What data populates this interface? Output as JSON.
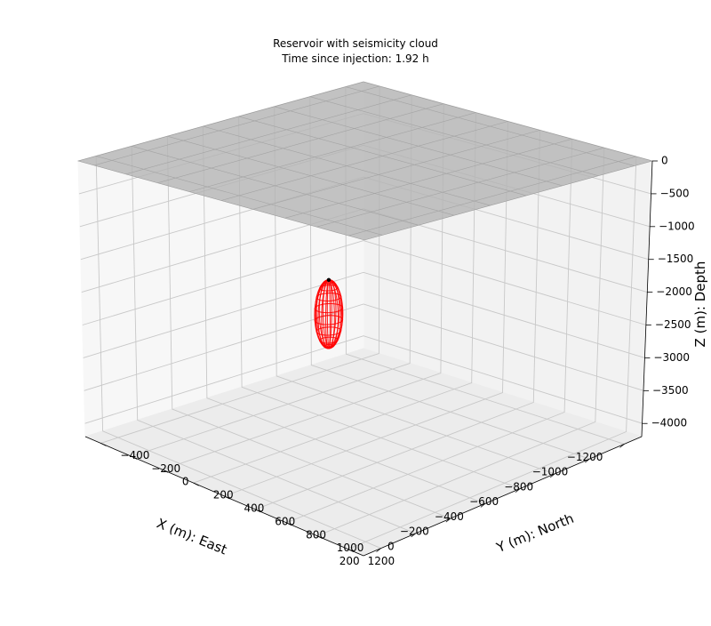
{
  "chart_data": {
    "type": "3d-surface-wireframe",
    "title": "Reservoir with seismicity cloud",
    "subtitle": "Time since injection: 1.92 h",
    "xlabel": "X (m): East",
    "ylabel": "Y (m): North",
    "zlabel": "Z (m): Depth",
    "x_ticks": [
      200,
      0,
      -200,
      -400,
      -600,
      -800,
      -1000,
      -1200
    ],
    "x_tick_labels": [
      "200",
      "0",
      "−200",
      "−400",
      "−600",
      "−800",
      "−1000",
      "−1200"
    ],
    "y_ticks": [
      -400,
      -200,
      0,
      200,
      400,
      600,
      800,
      1000,
      1200
    ],
    "y_tick_labels": [
      "−400",
      "−200",
      "0",
      "200",
      "400",
      "600",
      "800",
      "1000",
      "1200"
    ],
    "z_ticks": [
      0,
      -500,
      -1000,
      -1500,
      -2000,
      -2500,
      -3000,
      -3500,
      -4000
    ],
    "z_tick_labels": [
      "0",
      "−500",
      "−1000",
      "−1500",
      "−2000",
      "−2500",
      "−3000",
      "−3500",
      "−4000"
    ],
    "xlim": [
      -1300,
      300
    ],
    "ylim": [
      -500,
      1300
    ],
    "zlim": [
      -4200,
      0
    ],
    "grid": true,
    "surface": {
      "name": "ground surface",
      "z": 0,
      "color": "#b3b3b3"
    },
    "injection_point": {
      "x": -300,
      "y": 400,
      "z": -1600,
      "color": "#000000"
    },
    "seismicity_cloud": {
      "center": {
        "x": -300,
        "y": 400,
        "z": -2100
      },
      "semi_axis_horizontal": 60,
      "semi_axis_vertical": 500,
      "color": "#ff0000"
    }
  }
}
